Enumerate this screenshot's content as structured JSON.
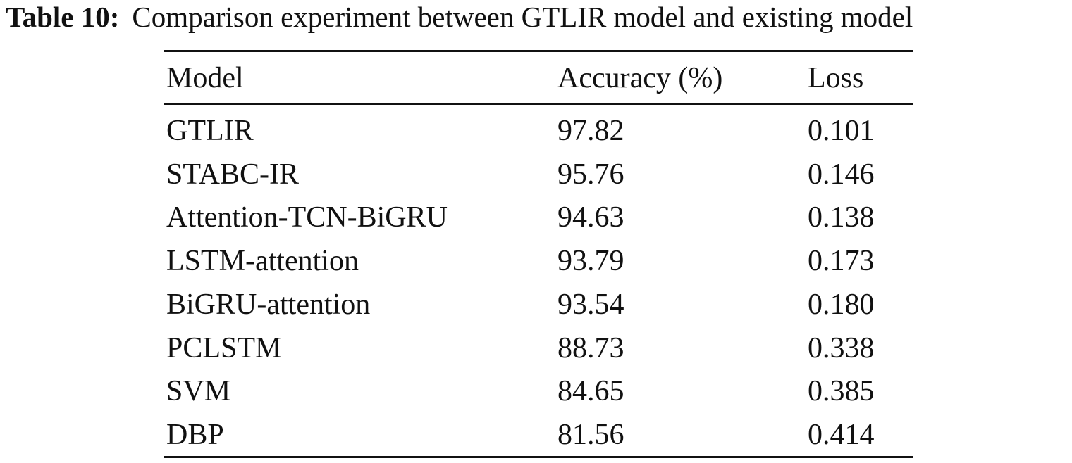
{
  "caption": {
    "label": "Table 10:",
    "text": "Comparison experiment between GTLIR model and existing model"
  },
  "table": {
    "header": [
      "Model",
      "Accuracy (%)",
      "Loss"
    ],
    "rows": [
      [
        "GTLIR",
        "97.82",
        "0.101"
      ],
      [
        "STABC-IR",
        "95.76",
        "0.146"
      ],
      [
        "Attention-TCN-BiGRU",
        "94.63",
        "0.138"
      ],
      [
        "LSTM-attention",
        "93.79",
        "0.173"
      ],
      [
        "BiGRU-attention",
        "93.54",
        "0.180"
      ],
      [
        "PCLSTM",
        "88.73",
        "0.338"
      ],
      [
        "SVM",
        "84.65",
        "0.385"
      ],
      [
        "DBP",
        "81.56",
        "0.414"
      ]
    ]
  }
}
